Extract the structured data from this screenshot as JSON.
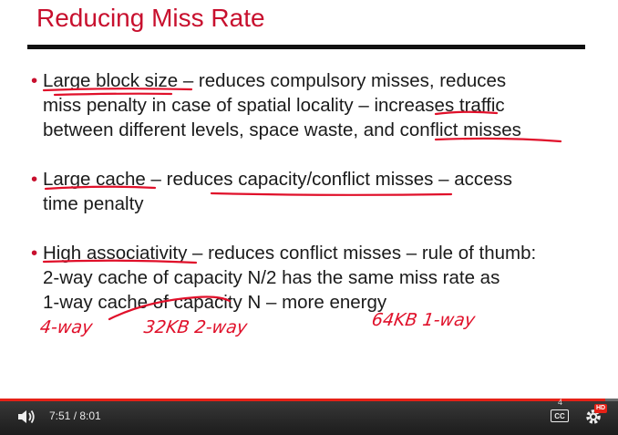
{
  "slide": {
    "title": "Reducing Miss Rate",
    "bullets": [
      {
        "marker": "•",
        "lines": [
          "Large block size – reduces compulsory misses, reduces",
          "miss penalty in case of spatial locality – increases traffic",
          "between different levels, space waste, and conflict misses"
        ]
      },
      {
        "marker": "•",
        "lines": [
          "Large cache – reduces capacity/conflict misses – access",
          "time penalty"
        ]
      },
      {
        "marker": "•",
        "lines": [
          "High associativity – reduces conflict misses – rule of thumb:",
          "2-way cache of capacity N/2 has the same miss rate as",
          "1-way cache of capacity N – more energy"
        ]
      }
    ],
    "handwritten_notes": [
      "4-way",
      "32KB 2-way",
      "64KB 1-way"
    ],
    "annotation_color": "#e0102a",
    "title_color": "#c8102e"
  },
  "player": {
    "time": "7:51 / 8:01",
    "progress_fraction": 0.979,
    "progress_color": "#e62117",
    "cc_label": "CC",
    "hd_badge": "HD",
    "marker_label": "4",
    "icons": [
      "volume-icon",
      "captions-icon",
      "settings-gear-icon"
    ]
  }
}
